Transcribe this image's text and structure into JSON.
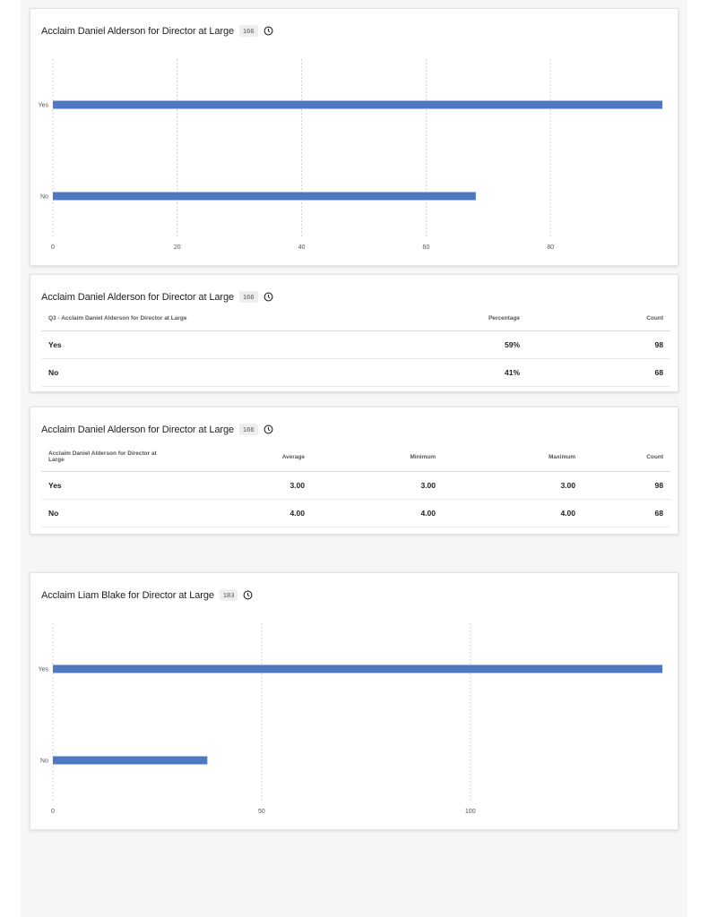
{
  "chart1": {
    "title": "Acclaim Daniel Alderson for Director at Large",
    "count_badge": "166",
    "icon": "info-icon",
    "chart_data": {
      "type": "bar",
      "orientation": "horizontal",
      "categories": [
        "Yes",
        "No"
      ],
      "values": [
        98,
        68
      ],
      "xlim": [
        0,
        98
      ],
      "xticks": [
        "0",
        "20",
        "40",
        "60",
        "80"
      ],
      "grid": true,
      "bar_color": "#4e79c2"
    }
  },
  "table1": {
    "title": "Acclaim Daniel Alderson for Director at Large",
    "count_badge": "166",
    "columns": [
      "Q3 - Acclaim Daniel Alderson for Director at Large",
      "Percentage",
      "Count"
    ],
    "rows": [
      [
        "Yes",
        "59%",
        "98"
      ],
      [
        "No",
        "41%",
        "68"
      ]
    ]
  },
  "table2": {
    "title": "Acclaim Daniel Alderson for Director at Large",
    "count_badge": "166",
    "columns": [
      "Acclaim Daniel Alderson for Director at Large",
      "Average",
      "Minimum",
      "Maximum",
      "Count"
    ],
    "rows": [
      [
        "Yes",
        "3.00",
        "3.00",
        "3.00",
        "98"
      ],
      [
        "No",
        "4.00",
        "4.00",
        "4.00",
        "68"
      ]
    ]
  },
  "chart2": {
    "title": "Acclaim Liam Blake for Director at Large",
    "count_badge": "183",
    "icon": "info-icon",
    "chart_data": {
      "type": "bar",
      "orientation": "horizontal",
      "categories": [
        "Yes",
        "No"
      ],
      "values": [
        146,
        37
      ],
      "xlim": [
        0,
        146
      ],
      "xticks": [
        "0",
        "50",
        "100"
      ],
      "grid": true,
      "bar_color": "#4e79c2"
    }
  }
}
